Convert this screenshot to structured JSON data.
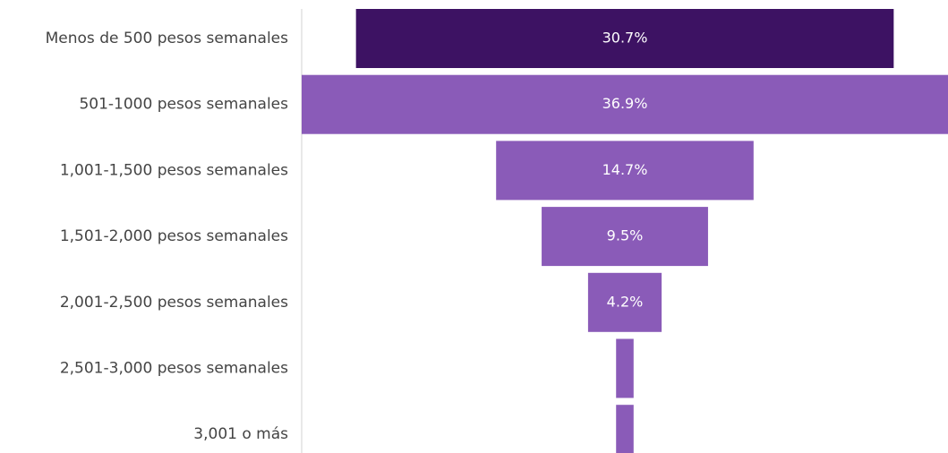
{
  "chart_data": {
    "type": "funnel",
    "categories": [
      "Menos de 500 pesos semanales",
      "501-1000 pesos semanales",
      "1,001-1,500 pesos semanales",
      "1,501-2,000 pesos semanales",
      "2,001-2,500 pesos semanales",
      "2,501-3,000 pesos semanales",
      "3,001 o más"
    ],
    "values": [
      30.7,
      36.9,
      14.7,
      9.5,
      4.2,
      1.0,
      1.0
    ],
    "value_labels": [
      "30.7%",
      "36.9%",
      "14.7%",
      "9.5%",
      "4.2%",
      null,
      null
    ],
    "colors": [
      "#3d1263",
      "#8a5bb8",
      "#8a5bb8",
      "#8a5bb8",
      "#8a5bb8",
      "#8a5bb8",
      "#8a5bb8"
    ]
  }
}
